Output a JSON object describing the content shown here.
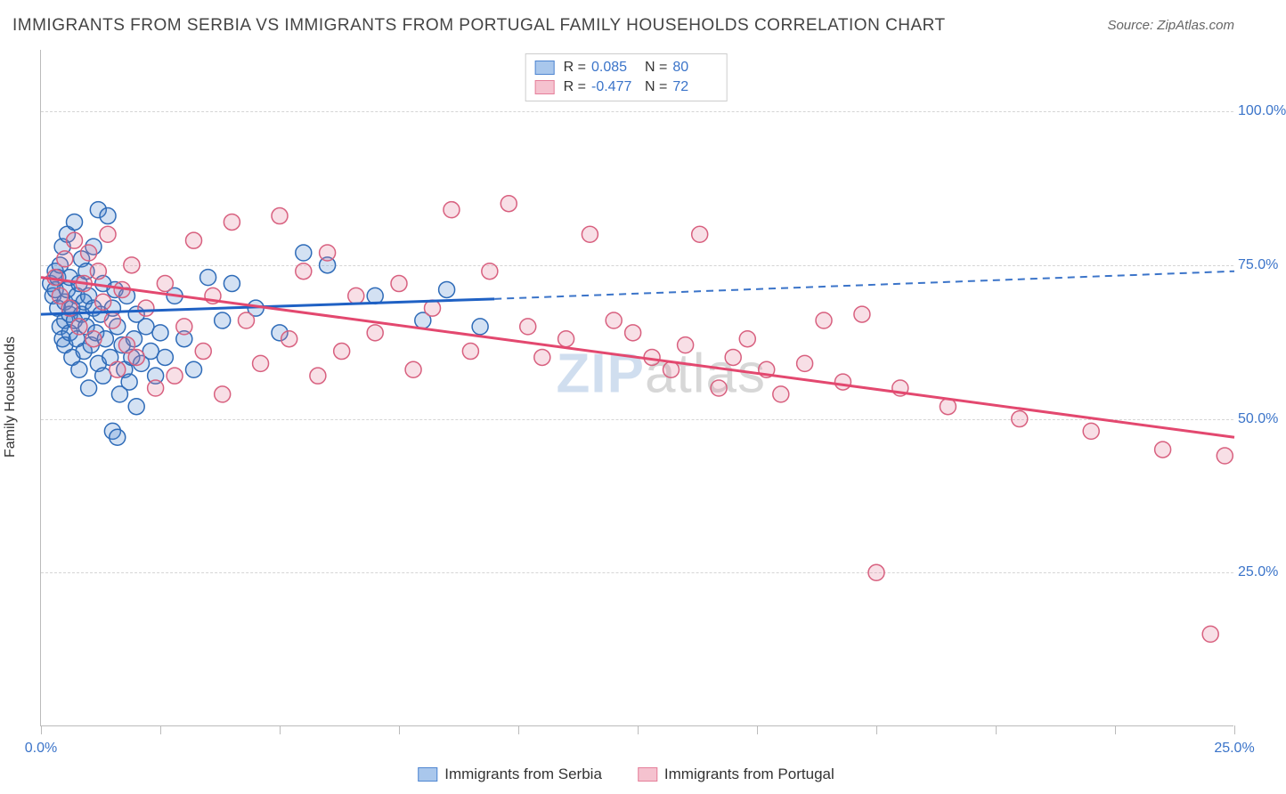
{
  "title": "IMMIGRANTS FROM SERBIA VS IMMIGRANTS FROM PORTUGAL FAMILY HOUSEHOLDS CORRELATION CHART",
  "source": "Source: ZipAtlas.com",
  "ylabel": "Family Households",
  "watermark_a": "ZIP",
  "watermark_b": "atlas",
  "chart": {
    "type": "scatter",
    "background_color": "#ffffff",
    "grid_color": "#d5d5d5",
    "axis_color": "#bbbbbb",
    "label_color_axis": "#3b74c9",
    "label_fontsize": 16,
    "title_fontsize": 19,
    "xlim": [
      0,
      25
    ],
    "ylim": [
      0,
      110
    ],
    "yticks": [
      25,
      50,
      75,
      100
    ],
    "ytick_labels": [
      "25.0%",
      "50.0%",
      "75.0%",
      "100.0%"
    ],
    "xticks": [
      0,
      2.5,
      5,
      7.5,
      10,
      12.5,
      15,
      17.5,
      20,
      22.5,
      25
    ],
    "xtick_labels": {
      "0": "0.0%",
      "25": "25.0%"
    },
    "marker_radius": 9,
    "marker_stroke_width": 1.5,
    "marker_fill_opacity": 0.25,
    "trend_line_width": 3
  },
  "series": [
    {
      "name": "Immigrants from Serbia",
      "swatch_fill": "#a9c7ec",
      "swatch_stroke": "#4f86d1",
      "marker_fill": "#4f86d1",
      "marker_stroke": "#2e6bb8",
      "trend_color": "#1f61c4",
      "trend_dash_color": "#3b74c9",
      "R": "0.085",
      "N": "80",
      "trend": {
        "x1": 0,
        "y1": 67,
        "x2_solid": 9.5,
        "y2_solid": 69.5,
        "x2_dash": 25,
        "y2_dash": 74
      },
      "points": [
        [
          0.2,
          72
        ],
        [
          0.25,
          70
        ],
        [
          0.3,
          74
        ],
        [
          0.3,
          71
        ],
        [
          0.35,
          68
        ],
        [
          0.35,
          73
        ],
        [
          0.4,
          65
        ],
        [
          0.4,
          75
        ],
        [
          0.45,
          63
        ],
        [
          0.45,
          78
        ],
        [
          0.5,
          62
        ],
        [
          0.5,
          66
        ],
        [
          0.5,
          69
        ],
        [
          0.55,
          71
        ],
        [
          0.55,
          80
        ],
        [
          0.6,
          64
        ],
        [
          0.6,
          67
        ],
        [
          0.6,
          73
        ],
        [
          0.65,
          60
        ],
        [
          0.65,
          68
        ],
        [
          0.7,
          82
        ],
        [
          0.7,
          66
        ],
        [
          0.75,
          63
        ],
        [
          0.75,
          70
        ],
        [
          0.8,
          58
        ],
        [
          0.8,
          72
        ],
        [
          0.85,
          67
        ],
        [
          0.85,
          76
        ],
        [
          0.9,
          61
        ],
        [
          0.9,
          69
        ],
        [
          0.95,
          65
        ],
        [
          0.95,
          74
        ],
        [
          1.0,
          55
        ],
        [
          1.0,
          70
        ],
        [
          1.05,
          62
        ],
        [
          1.1,
          68
        ],
        [
          1.1,
          78
        ],
        [
          1.15,
          64
        ],
        [
          1.2,
          59
        ],
        [
          1.2,
          84
        ],
        [
          1.25,
          67
        ],
        [
          1.3,
          57
        ],
        [
          1.3,
          72
        ],
        [
          1.35,
          63
        ],
        [
          1.4,
          83
        ],
        [
          1.45,
          60
        ],
        [
          1.5,
          48
        ],
        [
          1.5,
          68
        ],
        [
          1.55,
          71
        ],
        [
          1.6,
          47
        ],
        [
          1.6,
          65
        ],
        [
          1.65,
          54
        ],
        [
          1.7,
          62
        ],
        [
          1.75,
          58
        ],
        [
          1.8,
          70
        ],
        [
          1.85,
          56
        ],
        [
          1.9,
          60
        ],
        [
          1.95,
          63
        ],
        [
          2.0,
          52
        ],
        [
          2.0,
          67
        ],
        [
          2.1,
          59
        ],
        [
          2.2,
          65
        ],
        [
          2.3,
          61
        ],
        [
          2.4,
          57
        ],
        [
          2.5,
          64
        ],
        [
          2.6,
          60
        ],
        [
          2.8,
          70
        ],
        [
          3.0,
          63
        ],
        [
          3.2,
          58
        ],
        [
          3.5,
          73
        ],
        [
          3.8,
          66
        ],
        [
          4.0,
          72
        ],
        [
          4.5,
          68
        ],
        [
          5.0,
          64
        ],
        [
          5.5,
          77
        ],
        [
          6.0,
          75
        ],
        [
          7.0,
          70
        ],
        [
          8.0,
          66
        ],
        [
          8.5,
          71
        ],
        [
          9.2,
          65
        ]
      ]
    },
    {
      "name": "Immigrants from Portugal",
      "swatch_fill": "#f5c2cf",
      "swatch_stroke": "#e57f9a",
      "marker_fill": "#e57f9a",
      "marker_stroke": "#d8607f",
      "trend_color": "#e3486f",
      "R": "-0.477",
      "N": "72",
      "trend": {
        "x1": 0,
        "y1": 73,
        "x2_solid": 25,
        "y2_solid": 47
      },
      "points": [
        [
          0.3,
          73
        ],
        [
          0.4,
          70
        ],
        [
          0.5,
          76
        ],
        [
          0.6,
          68
        ],
        [
          0.7,
          79
        ],
        [
          0.8,
          65
        ],
        [
          0.9,
          72
        ],
        [
          1.0,
          77
        ],
        [
          1.1,
          63
        ],
        [
          1.2,
          74
        ],
        [
          1.3,
          69
        ],
        [
          1.4,
          80
        ],
        [
          1.5,
          66
        ],
        [
          1.6,
          58
        ],
        [
          1.7,
          71
        ],
        [
          1.8,
          62
        ],
        [
          1.9,
          75
        ],
        [
          2.0,
          60
        ],
        [
          2.2,
          68
        ],
        [
          2.4,
          55
        ],
        [
          2.6,
          72
        ],
        [
          2.8,
          57
        ],
        [
          3.0,
          65
        ],
        [
          3.2,
          79
        ],
        [
          3.4,
          61
        ],
        [
          3.6,
          70
        ],
        [
          3.8,
          54
        ],
        [
          4.0,
          82
        ],
        [
          4.3,
          66
        ],
        [
          4.6,
          59
        ],
        [
          5.0,
          83
        ],
        [
          5.2,
          63
        ],
        [
          5.5,
          74
        ],
        [
          5.8,
          57
        ],
        [
          6.0,
          77
        ],
        [
          6.3,
          61
        ],
        [
          6.6,
          70
        ],
        [
          7.0,
          64
        ],
        [
          7.5,
          72
        ],
        [
          7.8,
          58
        ],
        [
          8.2,
          68
        ],
        [
          8.6,
          84
        ],
        [
          9.0,
          61
        ],
        [
          9.4,
          74
        ],
        [
          9.8,
          85
        ],
        [
          10.2,
          65
        ],
        [
          10.5,
          60
        ],
        [
          11.0,
          63
        ],
        [
          11.5,
          80
        ],
        [
          12.0,
          66
        ],
        [
          12.4,
          64
        ],
        [
          12.8,
          60
        ],
        [
          13.2,
          58
        ],
        [
          13.5,
          62
        ],
        [
          13.8,
          80
        ],
        [
          14.2,
          55
        ],
        [
          14.5,
          60
        ],
        [
          14.8,
          63
        ],
        [
          15.2,
          58
        ],
        [
          15.5,
          54
        ],
        [
          16.0,
          59
        ],
        [
          16.4,
          66
        ],
        [
          16.8,
          56
        ],
        [
          17.2,
          67
        ],
        [
          17.5,
          25
        ],
        [
          18.0,
          55
        ],
        [
          19.0,
          52
        ],
        [
          20.5,
          50
        ],
        [
          22.0,
          48
        ],
        [
          23.5,
          45
        ],
        [
          24.5,
          15
        ],
        [
          24.8,
          44
        ]
      ]
    }
  ],
  "legend_top": {
    "r_label": "R  =",
    "n_label": "N  ="
  },
  "legend_bottom": [
    {
      "series_idx": 0
    },
    {
      "series_idx": 1
    }
  ]
}
